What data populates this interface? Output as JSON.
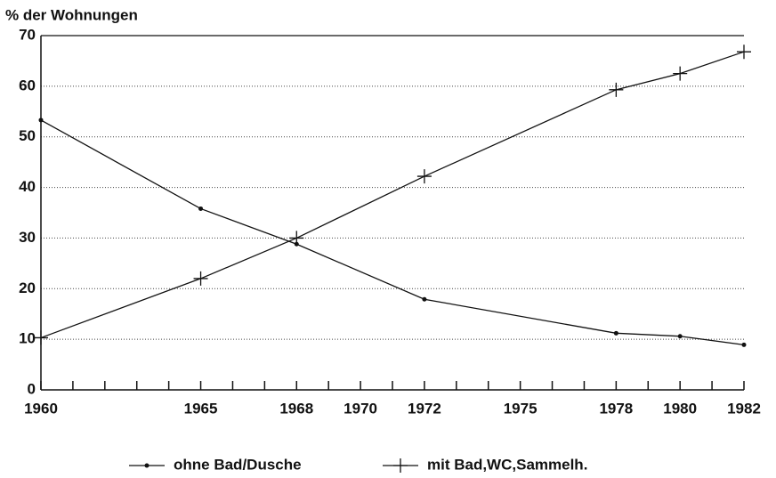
{
  "chart_data": {
    "type": "line",
    "y_label": "% der Wohnungen",
    "series": [
      {
        "name": "ohne Bad/Dusche",
        "color": "#111111",
        "marker": "dot",
        "x": [
          1960,
          1965,
          1968,
          1972,
          1978,
          1980,
          1982
        ],
        "values": [
          53.3,
          35.8,
          28.8,
          17.9,
          11.2,
          10.6,
          8.9
        ]
      },
      {
        "name": "mit Bad,WC,Sammelh.",
        "color": "#111111",
        "marker": "plus",
        "x": [
          1960,
          1965,
          1968,
          1972,
          1978,
          1980,
          1982
        ],
        "values": [
          10.3,
          22.0,
          30.0,
          42.2,
          59.3,
          62.5,
          66.8
        ]
      }
    ],
    "xlim": [
      1960,
      1982
    ],
    "xticks": [
      1960,
      1965,
      1968,
      1970,
      1972,
      1975,
      1978,
      1980,
      1982
    ],
    "xminorticks": [
      1961,
      1962,
      1963,
      1964,
      1966,
      1967,
      1969,
      1971,
      1973,
      1974,
      1976,
      1977,
      1979,
      1981
    ],
    "ylim": [
      0,
      70
    ],
    "yticks": [
      0,
      10,
      20,
      30,
      40,
      50,
      60,
      70
    ],
    "grid": true
  }
}
